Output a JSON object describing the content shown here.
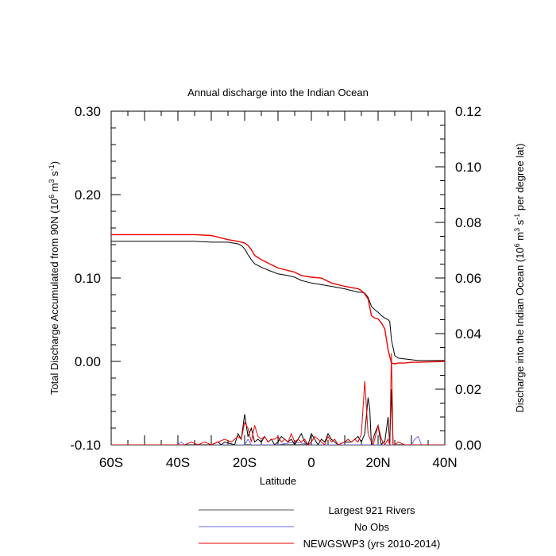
{
  "chart_data": {
    "type": "line",
    "title": "Annual discharge into the Indian Ocean",
    "xlabel": "Latitude",
    "ylabel_left": {
      "main": "Total Discharge Accumulated from 90N (10",
      "sup1": "6",
      "mid1": " m",
      "sup2": "3",
      "mid2": " s",
      "sup3": "-1",
      "end": ")"
    },
    "ylabel_right": {
      "main": "Discharge into the Indian Ocean (10",
      "sup1": "6",
      "mid1": " m",
      "sup2": "3",
      "mid2": " s",
      "sup3": "-1",
      "end": " per degree lat)"
    },
    "xlim": [
      -60,
      40
    ],
    "ylim_left": [
      -0.1,
      0.3
    ],
    "ylim_right": [
      0.0,
      0.12
    ],
    "x_ticks": [
      {
        "value": -60,
        "label": "60S"
      },
      {
        "value": -40,
        "label": "40S"
      },
      {
        "value": -20,
        "label": "20S"
      },
      {
        "value": 0,
        "label": "0"
      },
      {
        "value": 20,
        "label": "20N"
      },
      {
        "value": 40,
        "label": "40N"
      }
    ],
    "y_left_ticks": [
      {
        "value": 0.3,
        "label": "0.30"
      },
      {
        "value": 0.2,
        "label": "0.20"
      },
      {
        "value": 0.1,
        "label": "0.10"
      },
      {
        "value": 0.0,
        "label": "0.00"
      },
      {
        "value": -0.1,
        "label": "-0.10"
      }
    ],
    "y_right_ticks": [
      {
        "value": 0.12,
        "label": "0.12"
      },
      {
        "value": 0.1,
        "label": "0.10"
      },
      {
        "value": 0.08,
        "label": "0.08"
      },
      {
        "value": 0.06,
        "label": "0.06"
      },
      {
        "value": 0.04,
        "label": "0.04"
      },
      {
        "value": 0.02,
        "label": "0.02"
      },
      {
        "value": 0.0,
        "label": "0.00"
      }
    ],
    "series": [
      {
        "name": "Largest 921 Rivers",
        "axis": "left",
        "kind": "accumulated",
        "color": "#000000",
        "x": [
          -60,
          -35,
          -30,
          -25,
          -22,
          -21,
          -20,
          -19,
          -18,
          -17,
          -15,
          -12,
          -10,
          -7,
          -5,
          -3,
          0,
          3,
          6,
          10,
          14,
          15,
          16,
          17,
          18,
          19,
          20,
          21,
          22,
          23,
          23.5,
          24,
          25,
          26,
          28,
          30,
          32,
          40
        ],
        "values": [
          0.144,
          0.144,
          0.143,
          0.143,
          0.141,
          0.139,
          0.135,
          0.128,
          0.122,
          0.117,
          0.113,
          0.108,
          0.105,
          0.103,
          0.101,
          0.097,
          0.094,
          0.092,
          0.09,
          0.087,
          0.083,
          0.083,
          0.082,
          0.077,
          0.066,
          0.062,
          0.059,
          0.055,
          0.052,
          0.05,
          0.048,
          0.026,
          0.007,
          0.004,
          0.003,
          0.002,
          0.001,
          0.001
        ]
      },
      {
        "name": "No Obs",
        "axis": "right",
        "kind": "discharge",
        "color": "#6a6aee",
        "x": [
          -60,
          -45,
          -40,
          -39,
          -38,
          -30,
          -20,
          -19,
          -18,
          -10,
          -5,
          0,
          10,
          20,
          30,
          31,
          32,
          33,
          40
        ],
        "values": [
          0.0,
          0.0,
          0.0,
          0.001,
          0.0,
          0.0,
          0.0,
          0.002,
          0.0,
          0.0,
          0.001,
          0.0,
          0.0,
          0.0,
          0.0,
          0.002,
          0.003,
          0.0,
          0.0
        ]
      },
      {
        "name": "NEWGSWP3 (yrs 2010-2014)",
        "axis": "left",
        "kind": "accumulated",
        "color": "#ee0000",
        "x": [
          -60,
          -35,
          -30,
          -25,
          -22,
          -21,
          -20,
          -19,
          -18,
          -17,
          -15,
          -12,
          -10,
          -7,
          -5,
          -3,
          0,
          3,
          6,
          10,
          14,
          15,
          16,
          17,
          18,
          19,
          20,
          21,
          22,
          23,
          24,
          25,
          26,
          28,
          30,
          32,
          40
        ],
        "values": [
          0.152,
          0.152,
          0.151,
          0.146,
          0.144,
          0.143,
          0.142,
          0.139,
          0.134,
          0.127,
          0.122,
          0.116,
          0.112,
          0.109,
          0.107,
          0.103,
          0.101,
          0.1,
          0.094,
          0.09,
          0.087,
          0.085,
          0.081,
          0.075,
          0.055,
          0.052,
          0.051,
          0.046,
          0.039,
          0.014,
          -0.002,
          -0.003,
          -0.002,
          -0.002,
          -0.001,
          -0.001,
          0.0
        ]
      },
      {
        "name": "Largest 921 Rivers",
        "axis": "right",
        "kind": "discharge",
        "color": "#000000",
        "x": [
          -60,
          -40,
          -30,
          -28,
          -27,
          -26,
          -23,
          -22,
          -21,
          -20,
          -19,
          -18,
          -17,
          -16,
          -15,
          -14,
          -13,
          -12,
          -11,
          -10,
          -9,
          -8,
          -7,
          -6,
          -5,
          -4,
          -3,
          -2,
          -1,
          0,
          1,
          2,
          3,
          4,
          5,
          6,
          7,
          8,
          10,
          12,
          13,
          14,
          15,
          16,
          17,
          17.5,
          18,
          18.5,
          19,
          20,
          20.5,
          21,
          21.5,
          22,
          23,
          23.5,
          24,
          24.5,
          25,
          26,
          28,
          30,
          40
        ],
        "values": [
          0.0,
          0.0,
          0.0,
          0.001,
          0.0,
          0.001,
          0.0,
          0.004,
          0.002,
          0.011,
          0.003,
          0.006,
          0.001,
          0.002,
          0.001,
          0.003,
          0.001,
          0.002,
          0.0,
          0.001,
          0.003,
          0.002,
          0.001,
          0.002,
          0.0,
          0.002,
          0.004,
          0.001,
          0.0,
          0.004,
          0.002,
          0.0,
          0.002,
          0.001,
          0.004,
          0.002,
          0.001,
          0.0,
          0.001,
          0.001,
          0.002,
          0.003,
          0.001,
          0.004,
          0.017,
          0.013,
          0.0,
          0.002,
          0.004,
          0.007,
          0.003,
          0.0,
          0.001,
          0.001,
          0.01,
          0.0,
          0.02,
          0.0,
          0.0,
          0.0,
          0.0,
          0.0,
          0.0
        ]
      },
      {
        "name": "NEWGSWP3 (yrs 2010-2014)",
        "axis": "right",
        "kind": "discharge",
        "color": "#ee0000",
        "x": [
          -60,
          -40,
          -38,
          -36,
          -34,
          -32,
          -30,
          -26,
          -24,
          -22,
          -21,
          -20,
          -19,
          -18,
          -17,
          -16,
          -15,
          -14,
          -13,
          -12,
          -11,
          -10,
          -9,
          -8,
          -7,
          -6,
          -5,
          -4,
          -3,
          -2,
          -1,
          0,
          1,
          2,
          3,
          4,
          5,
          6,
          7,
          8,
          10,
          11,
          12,
          13,
          14,
          15,
          16,
          17,
          18,
          18.5,
          19,
          20,
          21,
          22,
          23,
          23.5,
          24,
          24.5,
          25,
          26,
          28,
          30,
          40
        ],
        "values": [
          0.0,
          0.0,
          0.0,
          0.001,
          0.0,
          0.001,
          0.0,
          0.002,
          0.001,
          0.003,
          0.002,
          0.008,
          0.006,
          0.001,
          0.007,
          0.003,
          0.002,
          0.003,
          0.001,
          0.002,
          0.002,
          0.003,
          0.001,
          0.002,
          0.001,
          0.004,
          0.001,
          0.002,
          0.001,
          0.002,
          0.0,
          0.001,
          0.003,
          0.002,
          0.001,
          0.0,
          0.003,
          0.001,
          0.002,
          0.0,
          0.001,
          0.002,
          0.001,
          0.002,
          0.001,
          0.004,
          0.023,
          0.004,
          0.001,
          0.0,
          0.002,
          0.007,
          0.002,
          0.0,
          0.002,
          0.0,
          0.033,
          0.0,
          0.0,
          0.001,
          0.0,
          0.0,
          0.0
        ]
      }
    ],
    "legend": [
      {
        "label": "Largest 921 Rivers",
        "color": "#555555"
      },
      {
        "label": "No Obs",
        "color": "#6a6aee"
      },
      {
        "label": "NEWGSWP3 (yrs 2010-2014)",
        "color": "#ee0000"
      }
    ]
  }
}
